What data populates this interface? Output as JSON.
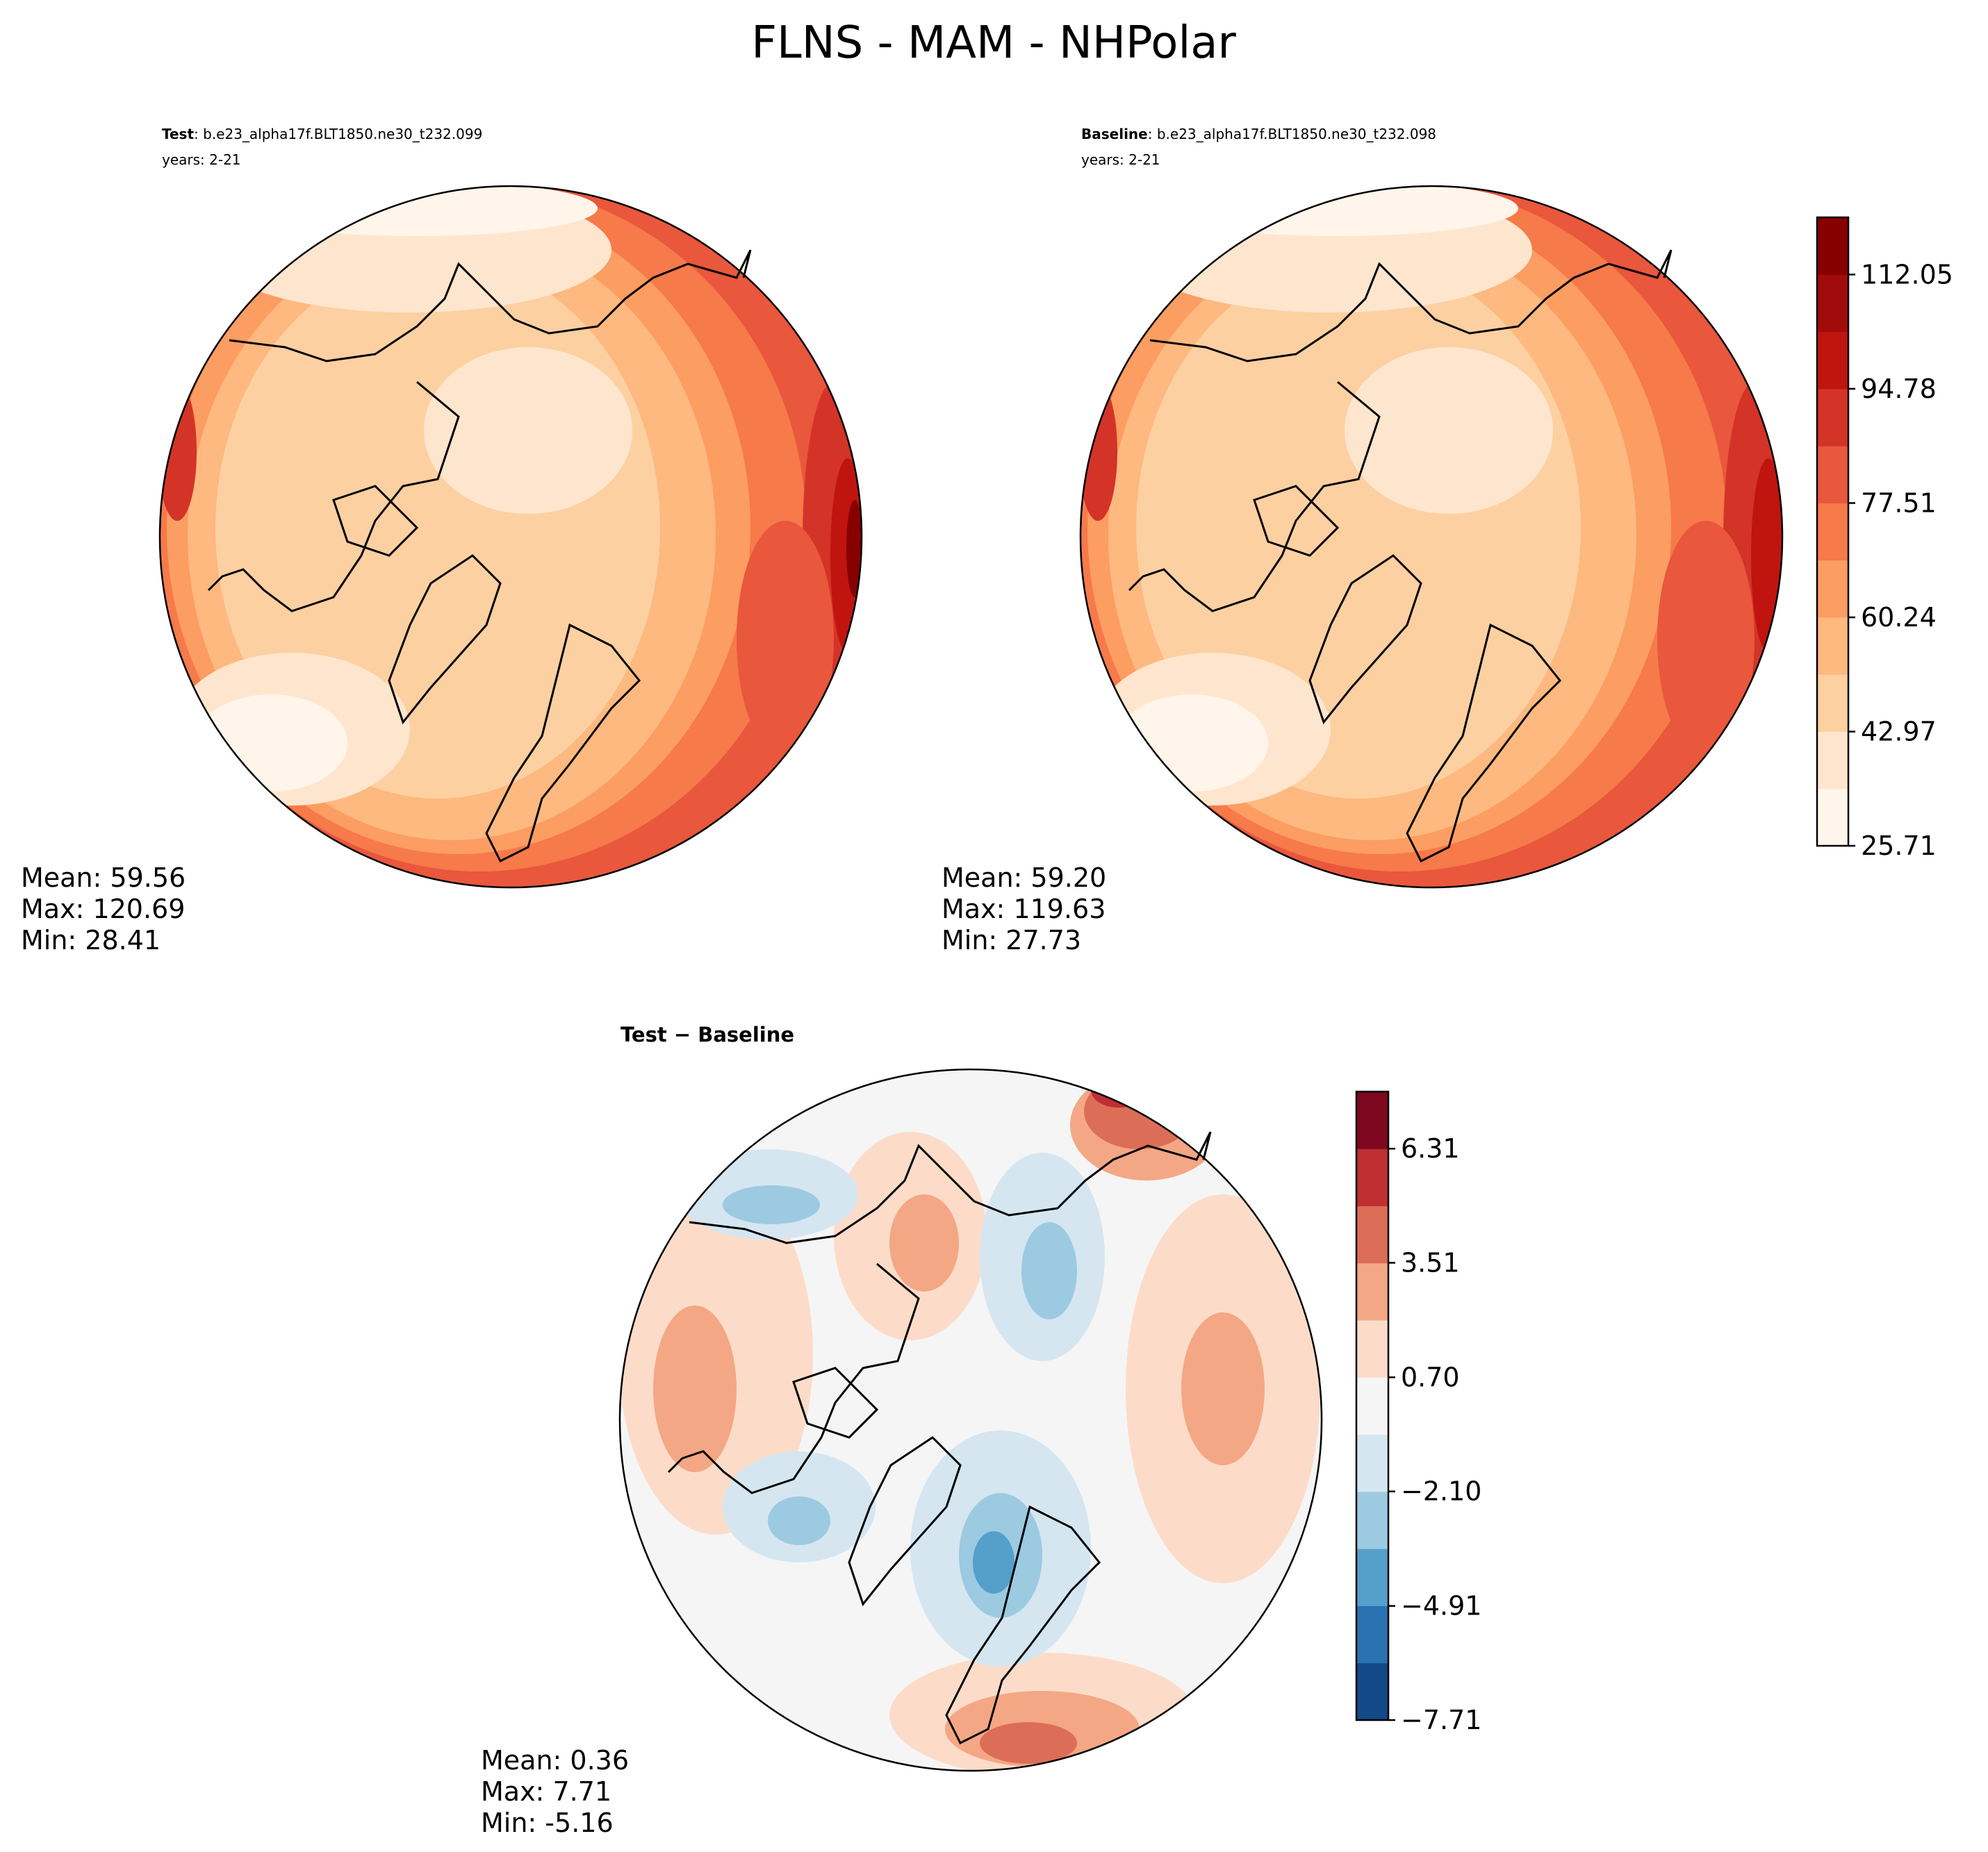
{
  "figure": {
    "title": "FLNS - MAM - NHPolar"
  },
  "chart_data": [
    {
      "type": "heatmap",
      "projection": "north-polar-stereographic",
      "panel": "test",
      "label_bold": "Test",
      "label_rest": ": b.e23_alpha17f.BLT1850.ne30_t232.099",
      "years": "years: 2-21",
      "stats": {
        "mean": "Mean: 59.56",
        "max": "Max: 120.69",
        "min": "Min: 28.41"
      },
      "field_range": [
        28.41,
        120.69
      ]
    },
    {
      "type": "heatmap",
      "projection": "north-polar-stereographic",
      "panel": "baseline",
      "label_bold": "Baseline",
      "label_rest": ": b.e23_alpha17f.BLT1850.ne30_t232.098",
      "years": "years: 2-21",
      "stats": {
        "mean": "Mean: 59.20",
        "max": "Max: 119.63",
        "min": "Min: 27.73"
      },
      "field_range": [
        27.73,
        119.63
      ]
    },
    {
      "type": "heatmap",
      "projection": "north-polar-stereographic",
      "panel": "difference",
      "label_bold": "Test − Baseline",
      "stats": {
        "mean": "Mean:  0.36",
        "max": "Max:  7.71",
        "min": "Min: -5.16"
      },
      "field_range": [
        -5.16,
        7.71
      ]
    }
  ],
  "colorbars": {
    "main": {
      "levels": 11,
      "range": [
        25.71,
        120.69
      ],
      "tick_values": [
        25.71,
        42.97,
        60.24,
        77.51,
        94.78,
        112.05
      ],
      "tick_labels": [
        "25.71",
        "42.97",
        "60.24",
        "77.51",
        "94.78",
        "112.05"
      ],
      "colors": [
        "#fff5eb",
        "#fee6ce",
        "#fdd0a2",
        "#fdb97f",
        "#fc9d62",
        "#f67a4a",
        "#e9573c",
        "#d43327",
        "#c0140f",
        "#a20b0b",
        "#870000"
      ]
    },
    "diff": {
      "levels": 11,
      "range": [
        -7.71,
        7.71
      ],
      "tick_values": [
        -7.71,
        -4.91,
        -2.1,
        0.7,
        3.51,
        6.31
      ],
      "tick_labels": [
        "−7.71",
        "−4.91",
        "−2.10",
        "0.70",
        "3.51",
        "6.31"
      ],
      "colors": [
        "#124987",
        "#2a71b2",
        "#559fcb",
        "#9ccae1",
        "#d5e6f1",
        "#f5f5f5",
        "#fcdcc9",
        "#f4a784",
        "#dc6e57",
        "#be2f31",
        "#7d081f"
      ]
    }
  }
}
